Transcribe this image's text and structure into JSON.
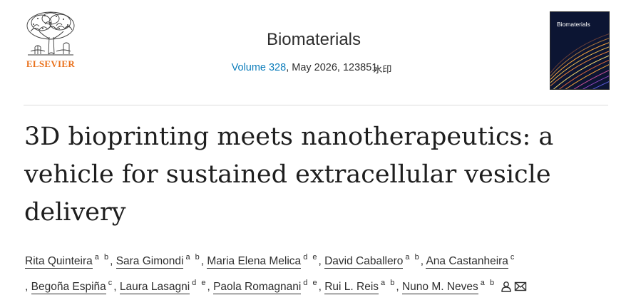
{
  "header": {
    "publisher": "ELSEVIER",
    "journal": "Biomaterials",
    "volume_link": "Volume 328",
    "issue_rest": ", May 2026, 123851",
    "stamp_text": "水印",
    "cover_title": "Biomaterials"
  },
  "article": {
    "title": "3D bioprinting meets nanotherapeutics: a vehicle for sustained extracellular vesicle delivery"
  },
  "authors": [
    {
      "name": "Rita Quinteira",
      "aff": "a b",
      "sep": ", "
    },
    {
      "name": "Sara Gimondi",
      "aff": "a b",
      "sep": ", "
    },
    {
      "name": "Maria Elena Melica",
      "aff": "d e",
      "sep": ", "
    },
    {
      "name": "David Caballero",
      "aff": "a b",
      "sep": ", "
    },
    {
      "name": "Ana Castanheira",
      "aff": "c",
      "sep": " "
    },
    {
      "name": "Begoña Espiña",
      "aff": "c",
      "sep": ", "
    },
    {
      "name": "Laura Lasagni",
      "aff": "d e",
      "sep": ", "
    },
    {
      "name": "Paola Romagnani",
      "aff": "d e",
      "sep": ", "
    },
    {
      "name": "Rui L. Reis",
      "aff": "a b",
      "sep": ", "
    },
    {
      "name": "Nuno M. Neves",
      "aff": "a b",
      "sep": ""
    }
  ],
  "icons": [
    "person-icon",
    "envelope-icon"
  ],
  "colors": {
    "brand": "#e9711c",
    "link": "#0c7dbb",
    "cover_bg": "#0c1533"
  }
}
